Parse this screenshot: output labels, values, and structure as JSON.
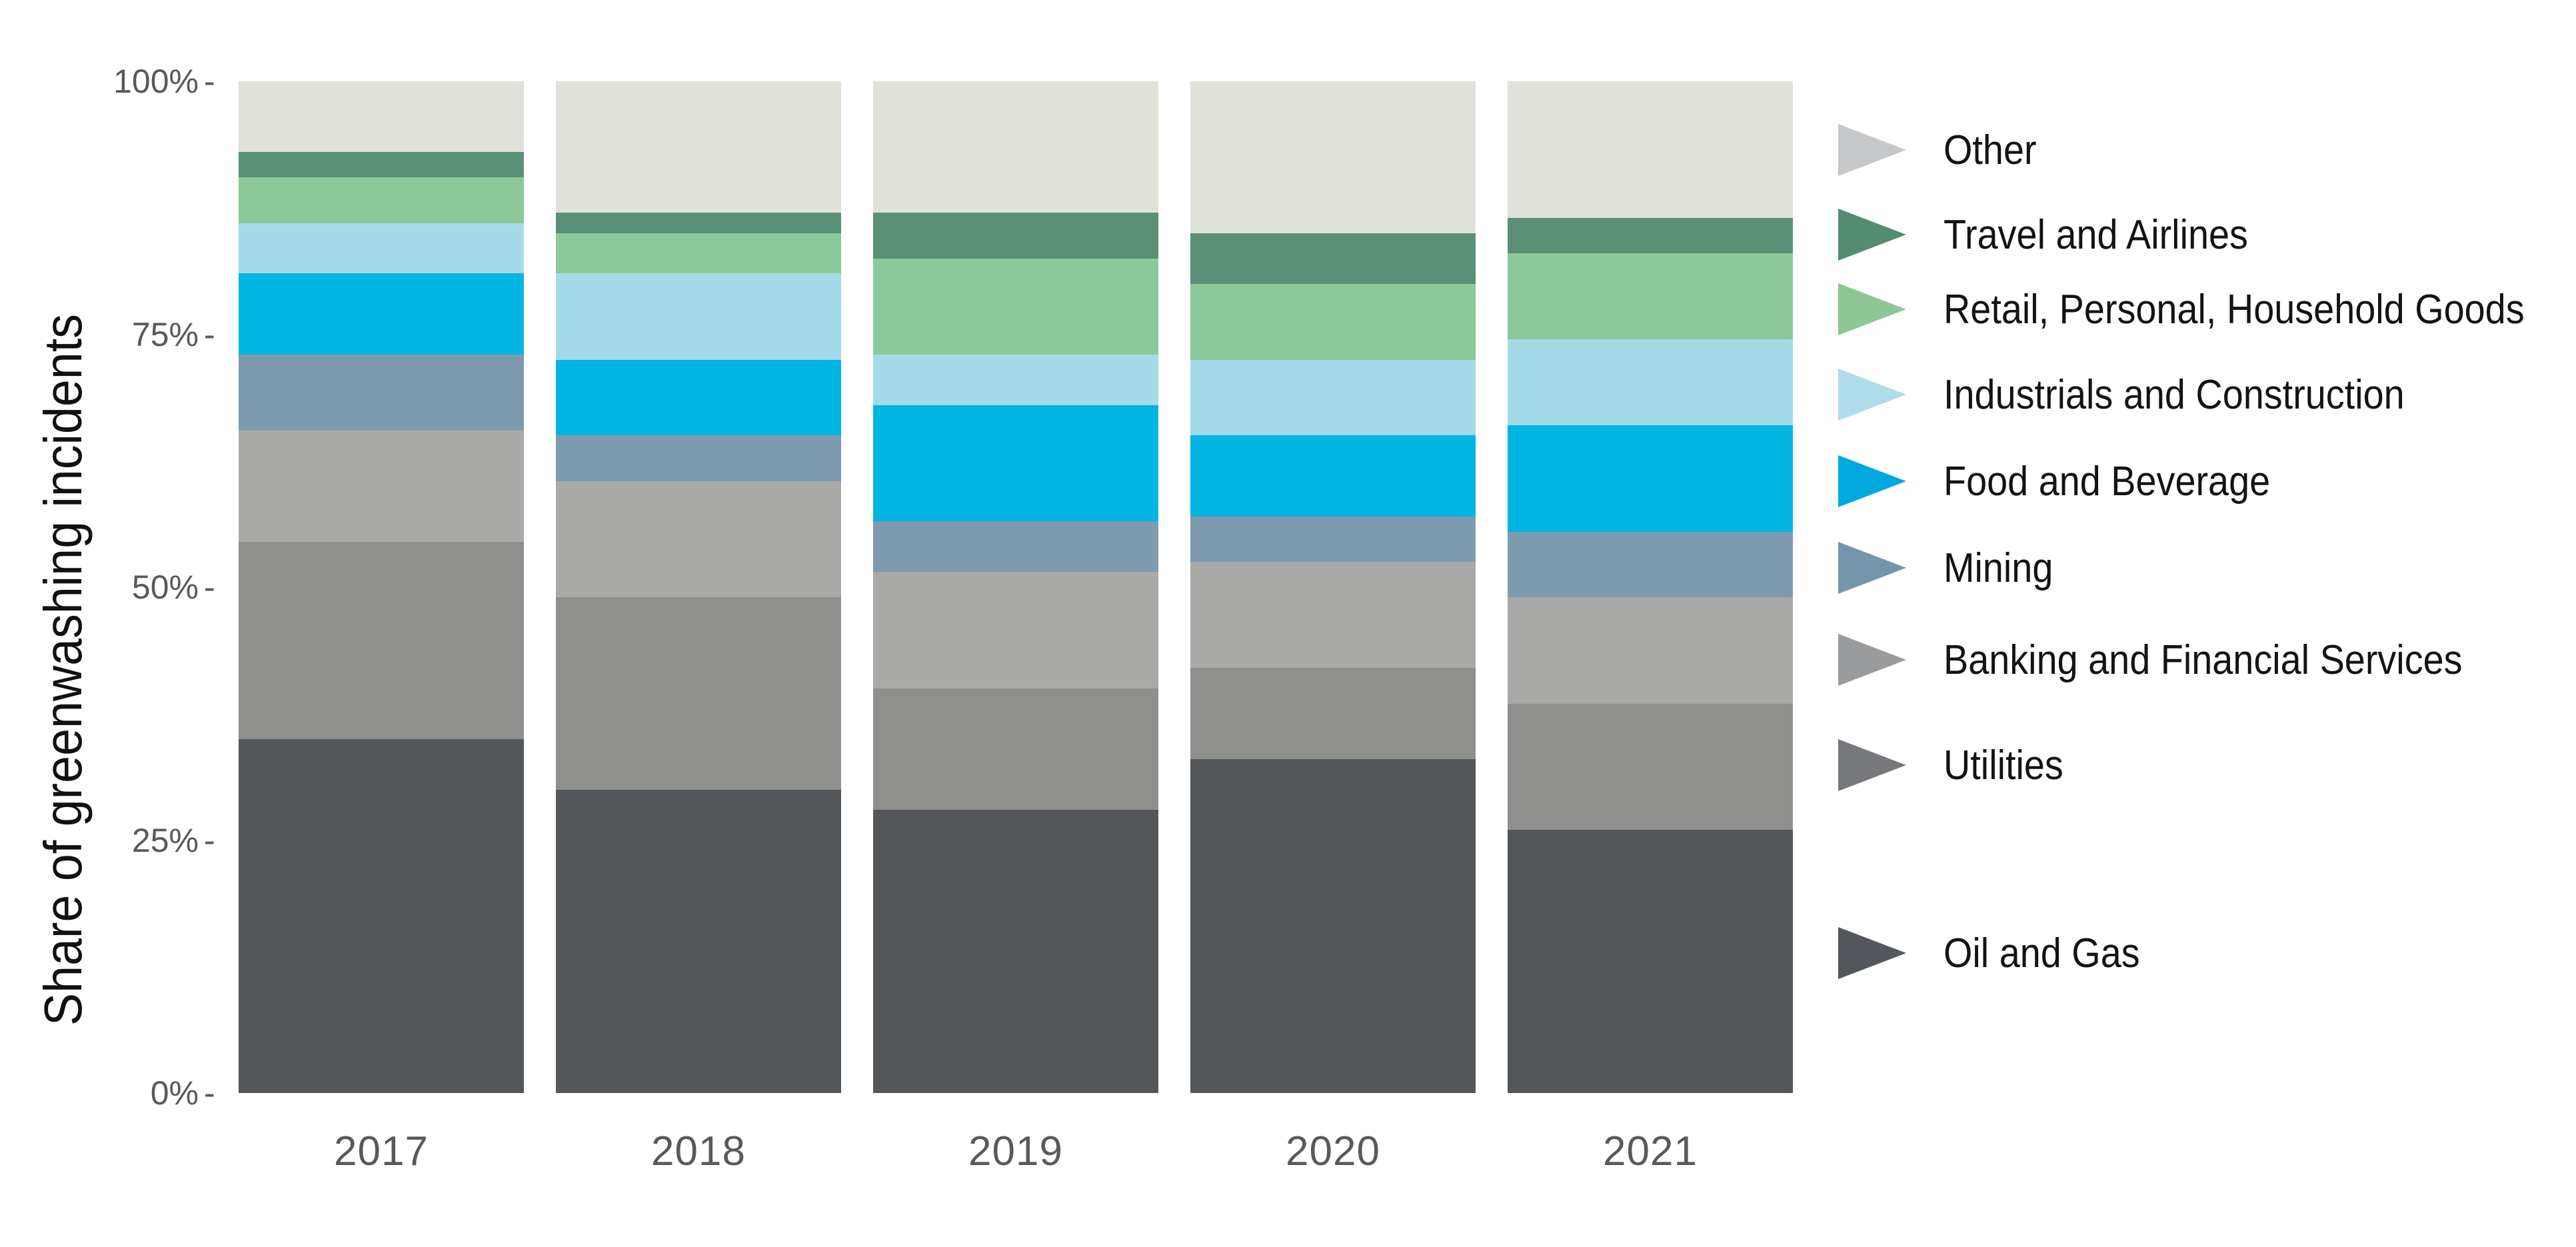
{
  "chart_data": {
    "type": "bar",
    "stacked": true,
    "orientation": "vertical",
    "title": "",
    "xlabel": "",
    "ylabel": "Share of greenwashing incidents",
    "ylim": [
      0,
      100
    ],
    "grid": false,
    "legend_position": "right",
    "categories": [
      "2017",
      "2018",
      "2019",
      "2020",
      "2021"
    ],
    "y_axis": {
      "ticks": [
        {
          "label": "100%",
          "value": 100
        },
        {
          "label": "75%",
          "value": 75
        },
        {
          "label": "50%",
          "value": 50
        },
        {
          "label": "25%",
          "value": 25
        },
        {
          "label": "0%",
          "value": 0
        }
      ],
      "tick_mark": "-"
    },
    "series": [
      {
        "name": "Oil and Gas",
        "color": "#54575a",
        "values": [
          35,
          30,
          28,
          33,
          26
        ]
      },
      {
        "name": "Utilities",
        "color": "#8f908e",
        "values": [
          19.5,
          19,
          12,
          9,
          12.5
        ]
      },
      {
        "name": "Banking and Financial Services",
        "color": "#a9a9a7",
        "values": [
          11,
          11.5,
          11.5,
          10.5,
          10.5
        ]
      },
      {
        "name": "Mining",
        "color": "#7d9aaf",
        "values": [
          7.5,
          4.5,
          5,
          4.5,
          6.5
        ]
      },
      {
        "name": "Food and Beverage",
        "color": "#00b5e2",
        "values": [
          8,
          7.5,
          11.5,
          8,
          10.5
        ]
      },
      {
        "name": "Industrials and Construction",
        "color": "#a5dae8",
        "values": [
          5,
          8.5,
          5,
          7.5,
          8.5
        ]
      },
      {
        "name": "Retail, Personal, Household Goods",
        "color": "#8dc89a",
        "values": [
          4.5,
          4,
          9.5,
          7.5,
          8.5
        ]
      },
      {
        "name": "Travel and Airlines",
        "color": "#5a9077",
        "values": [
          2.5,
          2,
          4.5,
          5,
          3.5
        ]
      },
      {
        "name": "Other",
        "color": "#e0e1da",
        "values": [
          7,
          13,
          13,
          15,
          13.5
        ]
      }
    ]
  },
  "legend": {
    "items": [
      {
        "label": "Other",
        "arrow_color": "#c6c7c9",
        "y_center": 225
      },
      {
        "label": "Travel and Airlines",
        "arrow_color": "#538c71",
        "y_center": 352
      },
      {
        "label": "Retail, Personal, Household Goods",
        "arrow_color": "#8cc795",
        "y_center": 464
      },
      {
        "label": "Industrials and Construction",
        "arrow_color": "#aedcea",
        "y_center": 592
      },
      {
        "label": "Food and Beverage",
        "arrow_color": "#00a8e0",
        "y_center": 722
      },
      {
        "label": "Mining",
        "arrow_color": "#7496ab",
        "y_center": 852
      },
      {
        "label": "Banking and Financial Services",
        "arrow_color": "#999b9d",
        "y_center": 990
      },
      {
        "label": "Utilities",
        "arrow_color": "#77787b",
        "y_center": 1148
      },
      {
        "label": "Oil and Gas",
        "arrow_color": "#53565a",
        "y_center": 1430
      }
    ]
  },
  "colors": {
    "background": "#ffffff",
    "tick_text": "#58595b",
    "year_text": "#58595b",
    "axis_title_text": "#111111",
    "legend_text": "#131313"
  }
}
